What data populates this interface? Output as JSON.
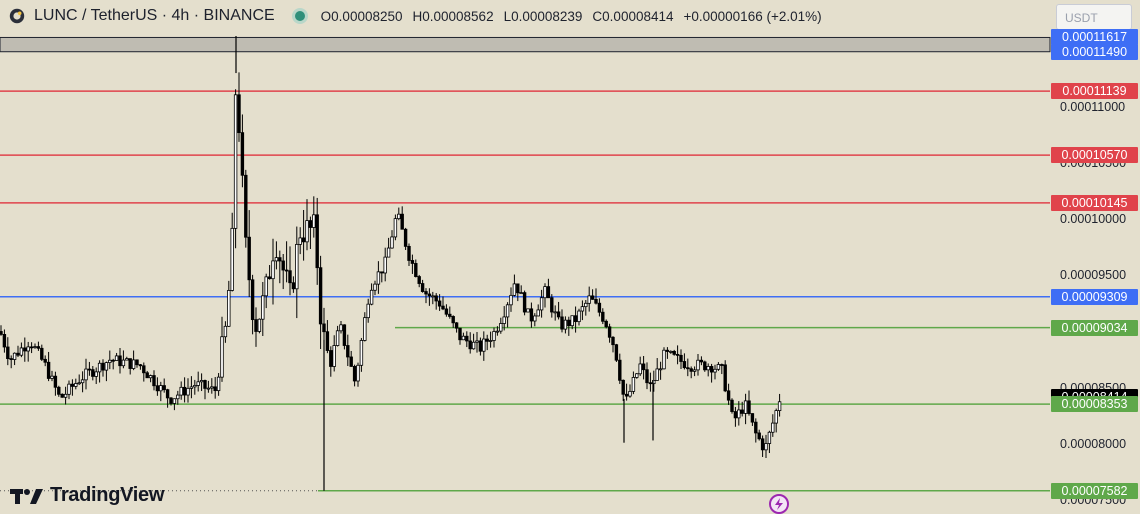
{
  "header": {
    "symbol": "LUNC / TetherUS · 4h · BINANCE",
    "open": "O0.00008250",
    "high": "H0.00008562",
    "low": "L0.00008239",
    "close": "C0.00008414",
    "change": "+0.00000166 (+2.01%)"
  },
  "currency_selector": "USDT",
  "logo_text": "TradingView",
  "colors": {
    "background": "#e4dfcd",
    "red_level": "#e0434b",
    "blue_level": "#3e6ef5",
    "green_level": "#5fa84a",
    "candle": "#000000"
  },
  "icons": [
    "coin-icon",
    "status-dot-icon",
    "tradingview-logo-icon",
    "lightning-icon"
  ],
  "chart_data": {
    "type": "candlestick",
    "ylim": [
      7.5e-05,
      0.0001163
    ],
    "axis_ticks": [
      "0.00011000",
      "0.00010500",
      "0.00010000",
      "0.00009500",
      "0.00008500",
      "0.00008000",
      "0.00007500"
    ],
    "levels": [
      {
        "label": "0.00011617",
        "value": 0.00011617,
        "color": "blue",
        "style": "zone-top"
      },
      {
        "label": "0.00011490",
        "value": 0.0001149,
        "color": "blue",
        "style": "zone-bottom"
      },
      {
        "label": "0.00011139",
        "value": 0.00011139,
        "color": "red"
      },
      {
        "label": "0.00010570",
        "value": 0.0001057,
        "color": "red"
      },
      {
        "label": "0.00010145",
        "value": 0.00010145,
        "color": "red"
      },
      {
        "label": "0.00009309",
        "value": 9.309e-05,
        "color": "blue"
      },
      {
        "label": "0.00009034",
        "value": 9.034e-05,
        "color": "green"
      },
      {
        "label": "0.00008414",
        "value": 8.414e-05,
        "color": "black",
        "style": "last-price"
      },
      {
        "label": "0.00008353",
        "value": 8.353e-05,
        "color": "green"
      },
      {
        "label": "0.00007582",
        "value": 7.582e-05,
        "color": "green"
      }
    ],
    "anchors": [
      [
        0,
        9e-05
      ],
      [
        10,
        8.75e-05
      ],
      [
        30,
        8.92e-05
      ],
      [
        45,
        8.7e-05
      ],
      [
        60,
        8.4e-05
      ],
      [
        80,
        8.58e-05
      ],
      [
        110,
        8.75e-05
      ],
      [
        140,
        8.7e-05
      ],
      [
        170,
        8.4e-05
      ],
      [
        195,
        8.53e-05
      ],
      [
        215,
        8.47e-05
      ],
      [
        225,
        8.95e-05
      ],
      [
        232,
        9.7e-05
      ],
      [
        236,
        0.000113
      ],
      [
        240,
        0.000107
      ],
      [
        245,
        9.8e-05
      ],
      [
        255,
        9.05e-05
      ],
      [
        265,
        9.3e-05
      ],
      [
        275,
        9.85e-05
      ],
      [
        290,
        9.3e-05
      ],
      [
        300,
        9.9e-05
      ],
      [
        315,
        9.9e-05
      ],
      [
        322,
        9e-05
      ],
      [
        330,
        8.7e-05
      ],
      [
        340,
        9.05e-05
      ],
      [
        355,
        8.55e-05
      ],
      [
        370,
        9.4e-05
      ],
      [
        385,
        9.6e-05
      ],
      [
        397,
        0.0001005
      ],
      [
        410,
        9.65e-05
      ],
      [
        425,
        9.35e-05
      ],
      [
        440,
        9.25e-05
      ],
      [
        460,
        8.95e-05
      ],
      [
        480,
        8.85e-05
      ],
      [
        495,
        9e-05
      ],
      [
        505,
        9.2e-05
      ],
      [
        515,
        9.45e-05
      ],
      [
        530,
        9.1e-05
      ],
      [
        545,
        9.35e-05
      ],
      [
        560,
        9.05e-05
      ],
      [
        575,
        9.1e-05
      ],
      [
        590,
        9.3e-05
      ],
      [
        605,
        9.1e-05
      ],
      [
        615,
        8.85e-05
      ],
      [
        625,
        8.35e-05
      ],
      [
        640,
        8.7e-05
      ],
      [
        650,
        8.5e-05
      ],
      [
        665,
        8.8e-05
      ],
      [
        690,
        8.7e-05
      ],
      [
        710,
        8.7e-05
      ],
      [
        722,
        8.65e-05
      ],
      [
        733,
        8.2e-05
      ],
      [
        745,
        8.35e-05
      ],
      [
        755,
        8.1e-05
      ],
      [
        765,
        7.95e-05
      ],
      [
        775,
        8.25e-05
      ],
      [
        780,
        8.41e-05
      ]
    ],
    "spikes": [
      {
        "x": 324,
        "low": 7.582e-05
      },
      {
        "x": 624,
        "low": 8.01e-05
      },
      {
        "x": 653,
        "low": 8.03e-05
      },
      {
        "x": 236,
        "high": 0.0001163
      }
    ]
  }
}
